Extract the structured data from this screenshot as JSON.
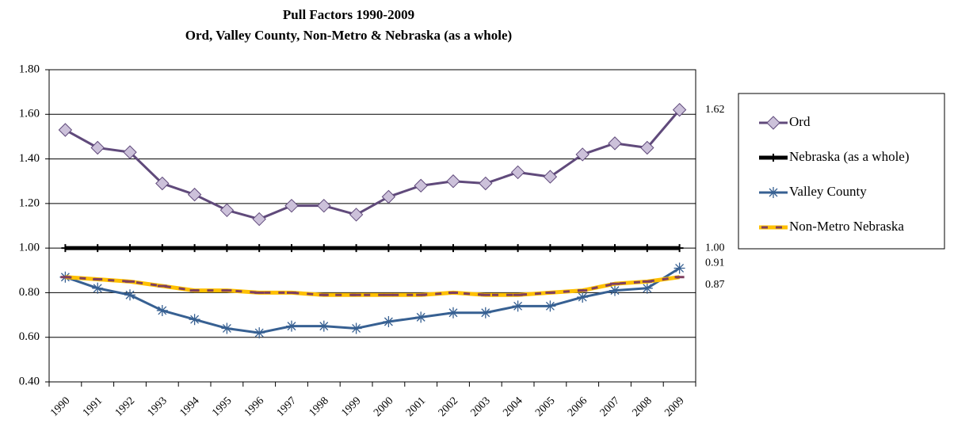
{
  "chart_data": {
    "type": "line",
    "title": "Pull Factors 1990-2009",
    "subtitle": "Ord, Valley County, Non-Metro & Nebraska (as a whole)",
    "categories": [
      "1990",
      "1991",
      "1992",
      "1993",
      "1994",
      "1995",
      "1996",
      "1997",
      "1998",
      "1999",
      "2000",
      "2001",
      "2002",
      "2003",
      "2004",
      "2005",
      "2006",
      "2007",
      "2008",
      "2009"
    ],
    "series": [
      {
        "name": "Ord",
        "color": "#604a7b",
        "marker": "diamond",
        "marker_color": "#ccc1da",
        "values": [
          1.53,
          1.45,
          1.43,
          1.29,
          1.24,
          1.17,
          1.13,
          1.19,
          1.19,
          1.15,
          1.23,
          1.28,
          1.3,
          1.29,
          1.34,
          1.32,
          1.42,
          1.47,
          1.45,
          1.62
        ],
        "value_labels": [
          null,
          null,
          null,
          null,
          null,
          null,
          null,
          null,
          null,
          null,
          null,
          null,
          null,
          null,
          null,
          null,
          null,
          null,
          null,
          "1.62"
        ]
      },
      {
        "name": "Nebraska (as a whole)",
        "color": "#000000",
        "marker": "plus",
        "values": [
          1,
          1,
          1,
          1,
          1,
          1,
          1,
          1,
          1,
          1,
          1,
          1,
          1,
          1,
          1,
          1,
          1,
          1,
          1,
          1
        ],
        "value_labels": [
          null,
          null,
          null,
          null,
          null,
          null,
          null,
          null,
          null,
          null,
          null,
          null,
          null,
          null,
          null,
          null,
          null,
          null,
          null,
          "1.00"
        ]
      },
      {
        "name": "Valley County",
        "color": "#376092",
        "marker": "star",
        "values": [
          0.87,
          0.82,
          0.79,
          0.72,
          0.68,
          0.64,
          0.62,
          0.65,
          0.65,
          0.64,
          0.67,
          0.69,
          0.71,
          0.71,
          0.74,
          0.74,
          0.78,
          0.81,
          0.82,
          0.91
        ],
        "value_labels": [
          null,
          null,
          null,
          null,
          null,
          null,
          null,
          null,
          null,
          null,
          null,
          null,
          null,
          null,
          null,
          null,
          null,
          null,
          null,
          "0.91"
        ]
      },
      {
        "name": "Non-Metro Nebraska",
        "color": "#ffc000",
        "dash_color": "#7f3f5f",
        "marker": "dash",
        "values": [
          0.87,
          0.86,
          0.85,
          0.83,
          0.81,
          0.81,
          0.8,
          0.8,
          0.79,
          0.79,
          0.79,
          0.79,
          0.8,
          0.79,
          0.79,
          0.8,
          0.81,
          0.84,
          0.85,
          0.87
        ],
        "value_labels": [
          null,
          null,
          null,
          null,
          null,
          null,
          null,
          null,
          null,
          null,
          null,
          null,
          null,
          null,
          null,
          null,
          null,
          null,
          null,
          "0.87"
        ]
      }
    ],
    "ylim": [
      0.4,
      1.8
    ],
    "yticks": [
      {
        "value": 0.4,
        "label": "0.40"
      },
      {
        "value": 0.6,
        "label": "0.60"
      },
      {
        "value": 0.8,
        "label": "0.80"
      },
      {
        "value": 1.0,
        "label": "1.00"
      },
      {
        "value": 1.2,
        "label": "1.20"
      },
      {
        "value": 1.4,
        "label": "1.40"
      },
      {
        "value": 1.6,
        "label": "1.60"
      },
      {
        "value": 1.8,
        "label": "1.80"
      }
    ],
    "grid": true,
    "legend": "right"
  }
}
